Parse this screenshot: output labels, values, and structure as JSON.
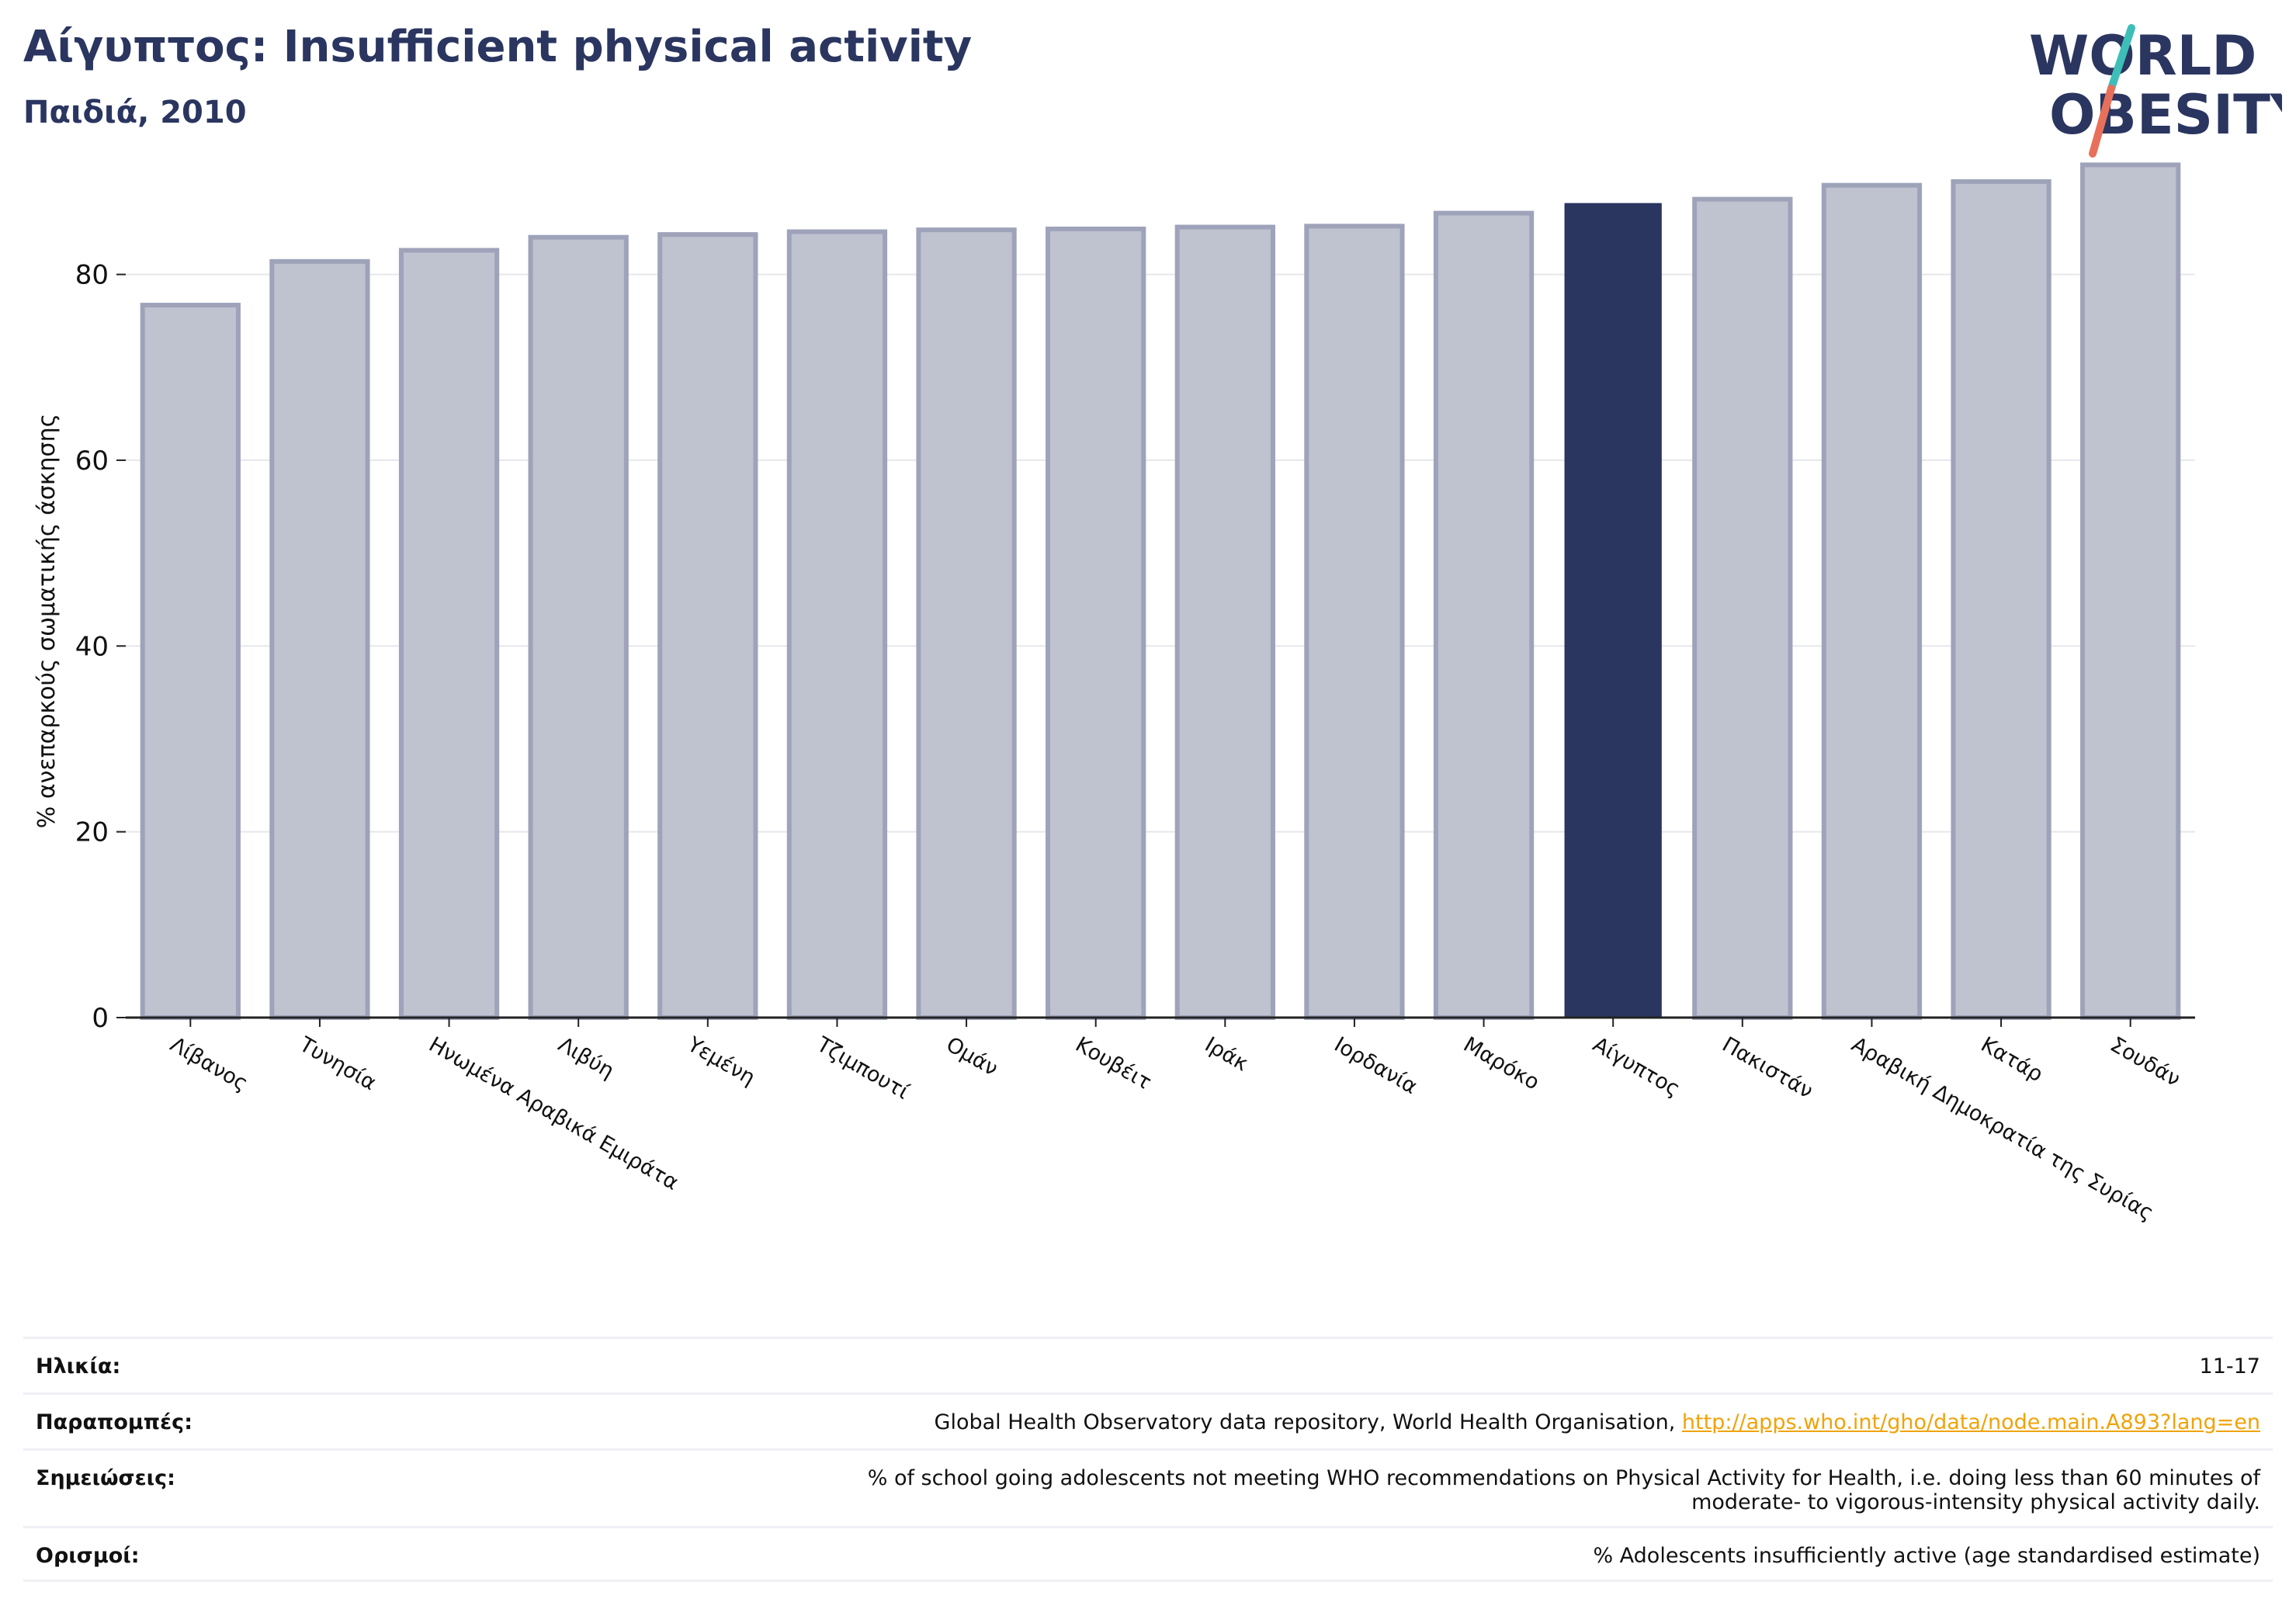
{
  "header": {
    "title": "Αίγυπτος: Insufficient physical activity",
    "subtitle": "Παιδιά, 2010"
  },
  "logo": {
    "line1": "WORLD",
    "line2": "OBESITY",
    "colors": {
      "text": "#2a3560",
      "slash_teal": "#3dbfb8",
      "slash_red": "#e8705a"
    }
  },
  "chart_data": {
    "type": "bar",
    "title": "Αίγυπτος: Insufficient physical activity",
    "subtitle": "Παιδιά, 2010",
    "xlabel": "",
    "ylabel": "% ανεπαρκούς σωματικής άσκησης",
    "ylim": [
      0,
      93
    ],
    "yticks": [
      0,
      20,
      40,
      60,
      80
    ],
    "grid": true,
    "highlight_category": "Αίγυπτος",
    "colors": {
      "bar": "#bfc2cf",
      "bar_edge": "#9ea3ba",
      "highlight": "#2a3560",
      "axis": "#222222",
      "grid": "#e6e7ec"
    },
    "categories": [
      "Λίβανος",
      "Τυνησία",
      "Ηνωμένα Αραβικά Εμιράτα",
      "Λιβύη",
      "Υεμένη",
      "Τζιμπουτί",
      "Ομάν",
      "Κουβέιτ",
      "Ιράκ",
      "Ιορδανία",
      "Μαρόκο",
      "Αίγυπτος",
      "Πακιστάν",
      "Αραβική Δημοκρατία της Συρίας",
      "Κατάρ",
      "Σουδάν"
    ],
    "values": [
      76.7,
      81.4,
      82.6,
      84.0,
      84.3,
      84.6,
      84.8,
      84.9,
      85.1,
      85.2,
      86.6,
      87.6,
      88.1,
      89.6,
      90.0,
      91.8
    ]
  },
  "meta": {
    "age_label": "Ηλικία:",
    "age_value": "11-17",
    "refs_label": "Παραπομπές:",
    "refs_text": "Global Health Observatory data repository, World Health Organisation, ",
    "refs_link": "http://apps.who.int/gho/data/node.main.A893?lang=en",
    "notes_label": "Σημειώσεις:",
    "notes_line1": "% of school going adolescents not meeting WHO recommendations on Physical Activity for Health, i.e. doing less than 60 minutes of",
    "notes_line2": "moderate- to vigorous-intensity physical activity daily.",
    "defs_label": "Ορισμοί:",
    "defs_value": "% Adolescents insufficiently active (age standardised estimate)"
  }
}
